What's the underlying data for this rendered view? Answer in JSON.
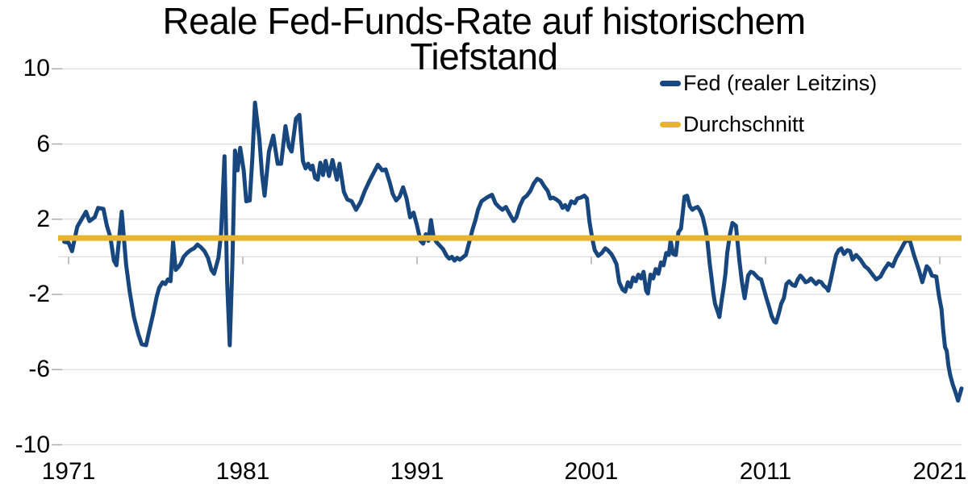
{
  "title": {
    "line1": "Reale Fed-Funds-Rate auf historischem",
    "line2": "Tiefstand"
  },
  "legend": {
    "items": [
      {
        "label": "Fed (realer Leitzins)",
        "color": "#17477E"
      },
      {
        "label": "Durchschnitt",
        "color": "#E7B52B"
      }
    ]
  },
  "colors": {
    "fed_line": "#17477E",
    "average_line": "#E7B52B",
    "gridline": "#DDDDDD",
    "tick": "#ADADAD",
    "background": "#FFFFFF",
    "text": "#000000"
  },
  "chart_data": {
    "type": "line",
    "title": "Reale Fed-Funds-Rate auf historischem Tiefstand",
    "xlabel": "",
    "ylabel": "",
    "grid": true,
    "legend_position": "top-right",
    "x_axis": {
      "ticks": [
        1971,
        1981,
        1991,
        2001,
        2011,
        2021
      ],
      "range": [
        1970.4,
        2022.3
      ]
    },
    "y_axis": {
      "ticks": [
        10,
        6,
        2,
        -2,
        -6,
        -10
      ],
      "range": [
        -10,
        10
      ]
    },
    "series": [
      {
        "name": "Fed (realer Leitzins)",
        "color": "#17477E",
        "points": [
          [
            1970.75,
            0.8
          ],
          [
            1971.0,
            0.75
          ],
          [
            1971.2,
            0.3
          ],
          [
            1971.5,
            1.6
          ],
          [
            1971.75,
            2.0
          ],
          [
            1972.0,
            2.4
          ],
          [
            1972.2,
            1.9
          ],
          [
            1972.5,
            2.1
          ],
          [
            1972.7,
            2.6
          ],
          [
            1973.0,
            2.55
          ],
          [
            1973.2,
            1.65
          ],
          [
            1973.4,
            1.05
          ],
          [
            1973.6,
            -0.2
          ],
          [
            1973.75,
            -0.45
          ],
          [
            1974.05,
            2.4
          ],
          [
            1974.3,
            -0.4
          ],
          [
            1974.5,
            -1.8
          ],
          [
            1974.75,
            -3.2
          ],
          [
            1975.0,
            -4.1
          ],
          [
            1975.2,
            -4.65
          ],
          [
            1975.45,
            -4.7
          ],
          [
            1975.6,
            -4.05
          ],
          [
            1975.85,
            -3.05
          ],
          [
            1976.05,
            -2.15
          ],
          [
            1976.2,
            -1.65
          ],
          [
            1976.4,
            -1.35
          ],
          [
            1976.55,
            -1.45
          ],
          [
            1976.7,
            -1.2
          ],
          [
            1976.85,
            -1.3
          ],
          [
            1977.0,
            0.8
          ],
          [
            1977.15,
            -0.7
          ],
          [
            1977.3,
            -0.55
          ],
          [
            1977.45,
            -0.35
          ],
          [
            1977.6,
            0.0
          ],
          [
            1977.8,
            0.2
          ],
          [
            1978.0,
            0.35
          ],
          [
            1978.2,
            0.45
          ],
          [
            1978.4,
            0.65
          ],
          [
            1978.6,
            0.5
          ],
          [
            1978.8,
            0.3
          ],
          [
            1979.0,
            -0.05
          ],
          [
            1979.2,
            -0.7
          ],
          [
            1979.35,
            -0.9
          ],
          [
            1979.6,
            -0.05
          ],
          [
            1979.75,
            1.2
          ],
          [
            1979.95,
            5.35
          ],
          [
            1980.1,
            -1.35
          ],
          [
            1980.25,
            -4.7
          ],
          [
            1980.4,
            -0.5
          ],
          [
            1980.55,
            5.65
          ],
          [
            1980.7,
            4.6
          ],
          [
            1980.85,
            5.8
          ],
          [
            1981.05,
            4.6
          ],
          [
            1981.2,
            2.95
          ],
          [
            1981.4,
            3.0
          ],
          [
            1981.55,
            5.3
          ],
          [
            1981.7,
            8.2
          ],
          [
            1981.95,
            6.3
          ],
          [
            1982.1,
            4.4
          ],
          [
            1982.25,
            3.25
          ],
          [
            1982.5,
            5.6
          ],
          [
            1982.75,
            6.45
          ],
          [
            1983.0,
            4.95
          ],
          [
            1983.2,
            4.95
          ],
          [
            1983.45,
            6.95
          ],
          [
            1983.65,
            5.85
          ],
          [
            1983.8,
            5.6
          ],
          [
            1984.05,
            7.35
          ],
          [
            1984.25,
            7.55
          ],
          [
            1984.45,
            5.1
          ],
          [
            1984.6,
            4.7
          ],
          [
            1984.75,
            4.95
          ],
          [
            1984.9,
            4.65
          ],
          [
            1985.0,
            4.85
          ],
          [
            1985.15,
            4.2
          ],
          [
            1985.3,
            4.1
          ],
          [
            1985.45,
            5.0
          ],
          [
            1985.6,
            4.35
          ],
          [
            1985.75,
            5.1
          ],
          [
            1985.95,
            4.3
          ],
          [
            1986.15,
            5.15
          ],
          [
            1986.4,
            4.1
          ],
          [
            1986.55,
            4.95
          ],
          [
            1986.8,
            3.45
          ],
          [
            1987.0,
            3.05
          ],
          [
            1987.25,
            2.95
          ],
          [
            1987.5,
            2.5
          ],
          [
            1987.75,
            2.9
          ],
          [
            1988.0,
            3.5
          ],
          [
            1988.25,
            4.0
          ],
          [
            1988.5,
            4.45
          ],
          [
            1988.75,
            4.9
          ],
          [
            1989.0,
            4.6
          ],
          [
            1989.2,
            4.65
          ],
          [
            1989.45,
            3.9
          ],
          [
            1989.6,
            3.35
          ],
          [
            1989.8,
            3.0
          ],
          [
            1990.0,
            3.2
          ],
          [
            1990.2,
            3.7
          ],
          [
            1990.4,
            3.1
          ],
          [
            1990.6,
            2.1
          ],
          [
            1990.8,
            2.35
          ],
          [
            1991.0,
            1.65
          ],
          [
            1991.2,
            0.85
          ],
          [
            1991.35,
            0.7
          ],
          [
            1991.5,
            1.2
          ],
          [
            1991.65,
            0.85
          ],
          [
            1991.8,
            1.95
          ],
          [
            1991.95,
            1.05
          ],
          [
            1992.1,
            0.8
          ],
          [
            1992.3,
            0.6
          ],
          [
            1992.5,
            0.4
          ],
          [
            1992.7,
            0.05
          ],
          [
            1992.85,
            -0.1
          ],
          [
            1993.0,
            0.0
          ],
          [
            1993.15,
            -0.2
          ],
          [
            1993.3,
            -0.05
          ],
          [
            1993.45,
            -0.15
          ],
          [
            1993.6,
            -0.05
          ],
          [
            1993.8,
            0.1
          ],
          [
            1994.0,
            0.8
          ],
          [
            1994.2,
            1.5
          ],
          [
            1994.35,
            1.95
          ],
          [
            1994.5,
            2.5
          ],
          [
            1994.7,
            2.95
          ],
          [
            1995.0,
            3.15
          ],
          [
            1995.3,
            3.3
          ],
          [
            1995.5,
            2.85
          ],
          [
            1995.7,
            2.65
          ],
          [
            1995.9,
            2.5
          ],
          [
            1996.1,
            2.65
          ],
          [
            1996.3,
            2.3
          ],
          [
            1996.55,
            1.9
          ],
          [
            1996.7,
            2.1
          ],
          [
            1996.9,
            2.7
          ],
          [
            1997.1,
            3.1
          ],
          [
            1997.3,
            3.25
          ],
          [
            1997.5,
            3.5
          ],
          [
            1997.7,
            3.9
          ],
          [
            1997.9,
            4.15
          ],
          [
            1998.1,
            4.05
          ],
          [
            1998.3,
            3.75
          ],
          [
            1998.5,
            3.5
          ],
          [
            1998.65,
            3.1
          ],
          [
            1998.8,
            3.15
          ],
          [
            1999.0,
            3.05
          ],
          [
            1999.2,
            2.9
          ],
          [
            1999.35,
            2.6
          ],
          [
            1999.5,
            2.75
          ],
          [
            1999.65,
            2.5
          ],
          [
            1999.85,
            2.95
          ],
          [
            2000.05,
            2.85
          ],
          [
            2000.2,
            3.1
          ],
          [
            2000.4,
            3.15
          ],
          [
            2000.6,
            3.25
          ],
          [
            2000.75,
            3.1
          ],
          [
            2000.9,
            1.85
          ],
          [
            2001.05,
            1.0
          ],
          [
            2001.2,
            0.35
          ],
          [
            2001.4,
            0.05
          ],
          [
            2001.6,
            0.2
          ],
          [
            2001.8,
            0.45
          ],
          [
            2001.95,
            0.35
          ],
          [
            2002.15,
            0.15
          ],
          [
            2002.3,
            -0.1
          ],
          [
            2002.45,
            -0.4
          ],
          [
            2002.6,
            -1.35
          ],
          [
            2002.8,
            -1.75
          ],
          [
            2002.95,
            -1.85
          ],
          [
            2003.1,
            -1.35
          ],
          [
            2003.25,
            -1.6
          ],
          [
            2003.4,
            -1.1
          ],
          [
            2003.55,
            -1.3
          ],
          [
            2003.7,
            -0.95
          ],
          [
            2003.85,
            -1.15
          ],
          [
            2004.0,
            -0.8
          ],
          [
            2004.15,
            -1.8
          ],
          [
            2004.25,
            -1.95
          ],
          [
            2004.4,
            -0.95
          ],
          [
            2004.55,
            -1.15
          ],
          [
            2004.7,
            -0.65
          ],
          [
            2004.85,
            -0.9
          ],
          [
            2005.0,
            -0.3
          ],
          [
            2005.15,
            -0.45
          ],
          [
            2005.3,
            0.2
          ],
          [
            2005.45,
            0.1
          ],
          [
            2005.55,
            0.85
          ],
          [
            2005.7,
            0.15
          ],
          [
            2005.85,
            0.1
          ],
          [
            2006.0,
            1.3
          ],
          [
            2006.15,
            1.5
          ],
          [
            2006.35,
            3.2
          ],
          [
            2006.5,
            3.25
          ],
          [
            2006.65,
            2.7
          ],
          [
            2006.8,
            2.5
          ],
          [
            2006.95,
            2.6
          ],
          [
            2007.1,
            2.65
          ],
          [
            2007.25,
            2.45
          ],
          [
            2007.4,
            2.1
          ],
          [
            2007.55,
            1.5
          ],
          [
            2007.65,
            1.0
          ],
          [
            2007.8,
            -0.4
          ],
          [
            2007.9,
            -1.1
          ],
          [
            2008.0,
            -1.9
          ],
          [
            2008.1,
            -2.5
          ],
          [
            2008.25,
            -2.9
          ],
          [
            2008.35,
            -3.2
          ],
          [
            2008.5,
            -2.2
          ],
          [
            2008.6,
            -1.6
          ],
          [
            2008.7,
            -0.9
          ],
          [
            2008.8,
            0.2
          ],
          [
            2008.95,
            1.15
          ],
          [
            2009.1,
            1.8
          ],
          [
            2009.3,
            1.65
          ],
          [
            2009.5,
            -0.2
          ],
          [
            2009.65,
            -1.35
          ],
          [
            2009.8,
            -2.2
          ],
          [
            2010.0,
            -1.0
          ],
          [
            2010.15,
            -0.8
          ],
          [
            2010.3,
            -0.85
          ],
          [
            2010.45,
            -1.0
          ],
          [
            2010.6,
            -1.15
          ],
          [
            2010.75,
            -1.2
          ],
          [
            2010.9,
            -1.7
          ],
          [
            2011.05,
            -2.2
          ],
          [
            2011.2,
            -2.65
          ],
          [
            2011.35,
            -3.15
          ],
          [
            2011.5,
            -3.45
          ],
          [
            2011.6,
            -3.5
          ],
          [
            2011.75,
            -3.05
          ],
          [
            2011.9,
            -2.5
          ],
          [
            2012.05,
            -2.2
          ],
          [
            2012.2,
            -1.45
          ],
          [
            2012.35,
            -1.3
          ],
          [
            2012.55,
            -1.5
          ],
          [
            2012.7,
            -1.55
          ],
          [
            2012.85,
            -1.2
          ],
          [
            2013.0,
            -1.0
          ],
          [
            2013.15,
            -1.15
          ],
          [
            2013.3,
            -1.35
          ],
          [
            2013.45,
            -1.3
          ],
          [
            2013.6,
            -1.15
          ],
          [
            2013.75,
            -1.3
          ],
          [
            2013.9,
            -1.45
          ],
          [
            2014.05,
            -1.3
          ],
          [
            2014.2,
            -1.35
          ],
          [
            2014.35,
            -1.55
          ],
          [
            2014.5,
            -1.65
          ],
          [
            2014.6,
            -1.8
          ],
          [
            2014.75,
            -1.2
          ],
          [
            2014.9,
            -0.55
          ],
          [
            2015.05,
            0.1
          ],
          [
            2015.2,
            0.35
          ],
          [
            2015.35,
            0.45
          ],
          [
            2015.5,
            0.15
          ],
          [
            2015.7,
            0.35
          ],
          [
            2015.85,
            0.3
          ],
          [
            2016.0,
            -0.15
          ],
          [
            2016.2,
            0.1
          ],
          [
            2016.45,
            -0.15
          ],
          [
            2016.7,
            -0.5
          ],
          [
            2016.9,
            -0.65
          ],
          [
            2017.1,
            -0.9
          ],
          [
            2017.35,
            -1.2
          ],
          [
            2017.6,
            -1.05
          ],
          [
            2017.8,
            -0.7
          ],
          [
            2018.05,
            -0.35
          ],
          [
            2018.3,
            -0.5
          ],
          [
            2018.5,
            -0.05
          ],
          [
            2018.75,
            0.35
          ],
          [
            2018.95,
            0.7
          ],
          [
            2019.1,
            0.9
          ],
          [
            2019.3,
            0.8
          ],
          [
            2019.55,
            0.0
          ],
          [
            2019.8,
            -0.7
          ],
          [
            2020.0,
            -1.35
          ],
          [
            2020.25,
            -0.5
          ],
          [
            2020.4,
            -0.65
          ],
          [
            2020.55,
            -1.0
          ],
          [
            2020.8,
            -1.05
          ],
          [
            2020.95,
            -2.05
          ],
          [
            2021.1,
            -2.8
          ],
          [
            2021.2,
            -3.9
          ],
          [
            2021.3,
            -4.8
          ],
          [
            2021.4,
            -5.0
          ],
          [
            2021.5,
            -5.8
          ],
          [
            2021.6,
            -6.3
          ],
          [
            2021.75,
            -6.8
          ],
          [
            2021.9,
            -7.2
          ],
          [
            2022.05,
            -7.65
          ],
          [
            2022.25,
            -7.0
          ]
        ]
      },
      {
        "name": "Durchschnitt",
        "color": "#E7B52B",
        "constant": 1.0
      }
    ]
  }
}
